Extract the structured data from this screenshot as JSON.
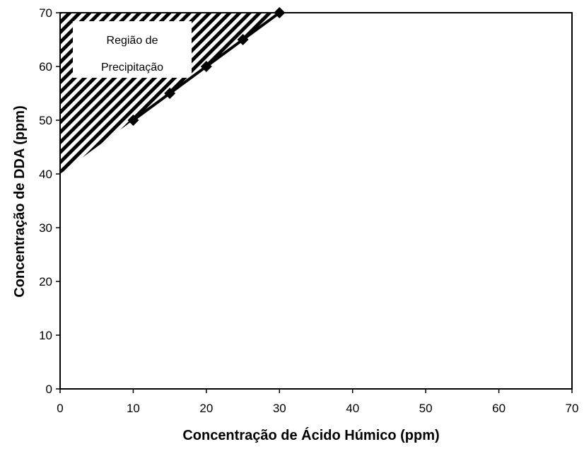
{
  "chart_data": {
    "type": "line",
    "xlabel": "Concentração de Ácido Húmico (ppm)",
    "ylabel": "Concentração de DDA (ppm)",
    "xlim": [
      0,
      70
    ],
    "ylim": [
      0,
      70
    ],
    "xticks": [
      0,
      10,
      20,
      30,
      40,
      50,
      60,
      70
    ],
    "yticks": [
      0,
      10,
      20,
      30,
      40,
      50,
      60,
      70
    ],
    "grid": false,
    "series": [
      {
        "x": [
          10,
          15,
          20,
          25,
          30
        ],
        "y": [
          50,
          55,
          60,
          65,
          70
        ],
        "marker": "diamond",
        "color": "#000000"
      }
    ],
    "shaded_region": {
      "polygon": [
        [
          0,
          40
        ],
        [
          0,
          70
        ],
        [
          30,
          70
        ],
        [
          10,
          50
        ]
      ],
      "fill": "diagonal-hatch",
      "label_line1": "Região de",
      "label_line2": "Precipitação"
    }
  }
}
